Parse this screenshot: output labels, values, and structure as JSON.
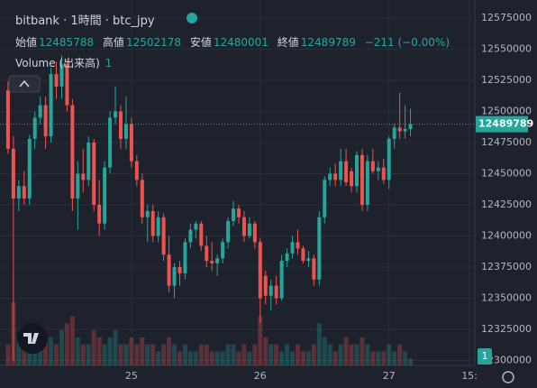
{
  "chart_data": {
    "type": "candlestick",
    "title": "bitbank · 1時間 · btc_jpy",
    "legend_labels": [
      "始値",
      "高値",
      "安値",
      "終値"
    ],
    "change_label": "−211 (−0.00%)",
    "volume_name": "Volume (出来高)",
    "volume_param": 1,
    "volume_value": 1,
    "up_color": "#26a69a",
    "down_color": "#ef5350",
    "grid": true,
    "ylim": [
      12296000,
      12589500
    ],
    "yticks": [
      12300000,
      12325000,
      12350000,
      12375000,
      12400000,
      12425000,
      12450000,
      12475000,
      12500000,
      12525000,
      12550000,
      12575000
    ],
    "xlim": [
      -1.5,
      87
    ],
    "xticks": [
      {
        "value": 23,
        "label": "25"
      },
      {
        "value": 47,
        "label": "26"
      },
      {
        "value": 71,
        "label": "27"
      },
      {
        "value": 86,
        "label": "15:"
      }
    ],
    "open": [
      12517000,
      12470000,
      12430000,
      12440000,
      12430000,
      12478000,
      12495000,
      12505000,
      12480000,
      12530000,
      12520000,
      12538000,
      12505000,
      12430000,
      12450000,
      12445000,
      12475000,
      12425000,
      12410000,
      12455000,
      12495000,
      12500000,
      12478000,
      12490000,
      12460000,
      12445000,
      12415000,
      12420000,
      12400000,
      12415000,
      12385000,
      12360000,
      12375000,
      12370000,
      12395000,
      12405000,
      12410000,
      12392000,
      12380000,
      12378000,
      12382000,
      12395000,
      12412000,
      12422000,
      12415000,
      12400000,
      12410000,
      12395000,
      12368000,
      12352000,
      12360000,
      12350000,
      12380000,
      12386000,
      12395000,
      12390000,
      12380000,
      12382000,
      12365000,
      12415000,
      12445000,
      12450000,
      12445000,
      12460000,
      12452000,
      12440000,
      12465000,
      12425000,
      12460000,
      12452000,
      12455000,
      12445000,
      12478000,
      12487000,
      12484000,
      12485788
    ],
    "high": [
      12524000,
      12480000,
      12445000,
      12452000,
      12481000,
      12500000,
      12512000,
      12512000,
      12535000,
      12540000,
      12545000,
      12542000,
      12510000,
      12460000,
      12470000,
      12480000,
      12478000,
      12445000,
      12460000,
      12500000,
      12520000,
      12505000,
      12512000,
      12495000,
      12465000,
      12450000,
      12425000,
      12425000,
      12420000,
      12418000,
      12400000,
      12378000,
      12380000,
      12398000,
      12410000,
      12412000,
      12412000,
      12400000,
      12395000,
      12385000,
      12398000,
      12415000,
      12428000,
      12425000,
      12420000,
      12415000,
      12412000,
      12398000,
      12372000,
      12365000,
      12368000,
      12385000,
      12390000,
      12400000,
      12405000,
      12392000,
      12388000,
      12385000,
      12420000,
      12448000,
      12455000,
      12458000,
      12470000,
      12470000,
      12455000,
      12468000,
      12470000,
      12465000,
      12470000,
      12460000,
      12462000,
      12480000,
      12490000,
      12515000,
      12505000,
      12502178
    ],
    "low": [
      12466000,
      12300000,
      12420000,
      12425000,
      12425000,
      12470000,
      12490000,
      12470000,
      12475000,
      12510000,
      12510000,
      12500000,
      12420000,
      12405000,
      12435000,
      12440000,
      12420000,
      12400000,
      12405000,
      12450000,
      12490000,
      12470000,
      12470000,
      12455000,
      12440000,
      12410000,
      12395000,
      12395000,
      12395000,
      12380000,
      12355000,
      12350000,
      12360000,
      12365000,
      12390000,
      12398000,
      12388000,
      12375000,
      12372000,
      12368000,
      12378000,
      12390000,
      12408000,
      12410000,
      12395000,
      12398000,
      12390000,
      12330000,
      12345000,
      12340000,
      12345000,
      12348000,
      12375000,
      12382000,
      12385000,
      12378000,
      12375000,
      12360000,
      12360000,
      12410000,
      12440000,
      12440000,
      12440000,
      12440000,
      12435000,
      12435000,
      12420000,
      12420000,
      12450000,
      12445000,
      12442000,
      12438000,
      12470000,
      12478000,
      12478000,
      12480001
    ],
    "close": [
      12470000,
      12430000,
      12440000,
      12430000,
      12478000,
      12495000,
      12505000,
      12480000,
      12530000,
      12520000,
      12538000,
      12505000,
      12430000,
      12450000,
      12445000,
      12475000,
      12425000,
      12410000,
      12455000,
      12495000,
      12500000,
      12478000,
      12490000,
      12460000,
      12445000,
      12415000,
      12420000,
      12400000,
      12415000,
      12385000,
      12360000,
      12375000,
      12370000,
      12395000,
      12405000,
      12410000,
      12392000,
      12380000,
      12378000,
      12382000,
      12395000,
      12412000,
      12422000,
      12415000,
      12400000,
      12410000,
      12395000,
      12350000,
      12352000,
      12360000,
      12350000,
      12380000,
      12386000,
      12395000,
      12390000,
      12380000,
      12382000,
      12365000,
      12415000,
      12445000,
      12450000,
      12445000,
      12460000,
      12443000,
      12440000,
      12465000,
      12425000,
      12460000,
      12452000,
      12455000,
      12445000,
      12478000,
      12487000,
      12484000,
      12486000,
      12489789
    ],
    "volume": [
      3,
      9,
      4,
      3,
      5,
      3,
      3,
      4,
      4,
      3,
      5,
      6,
      7,
      4,
      3,
      3,
      5,
      4,
      3,
      4,
      5,
      3,
      3,
      4,
      3,
      4,
      3,
      3,
      2,
      3,
      4,
      3,
      2,
      3,
      2,
      2,
      3,
      3,
      2,
      2,
      2,
      3,
      3,
      2,
      3,
      2,
      3,
      7,
      4,
      3,
      3,
      2,
      3,
      2,
      3,
      2,
      2,
      3,
      6,
      4,
      3,
      2,
      3,
      4,
      3,
      3,
      4,
      3,
      2,
      2,
      2,
      3,
      2,
      3,
      2,
      1
    ]
  }
}
